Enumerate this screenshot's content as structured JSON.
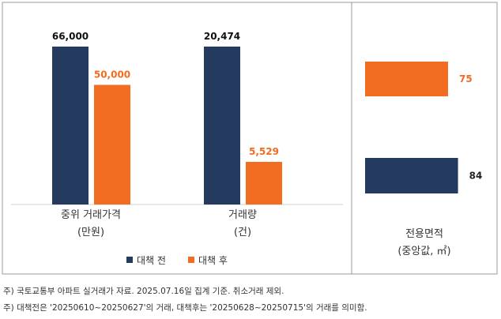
{
  "chart_data": [
    {
      "type": "bar",
      "orientation": "vertical",
      "categories": [
        "중위 거래가격\n(만원)",
        "거래량\n(건)"
      ],
      "category_lines": [
        [
          "중위 거래가격",
          "(만원)"
        ],
        [
          "거래량",
          "(건)"
        ]
      ],
      "series": [
        {
          "name": "대책 전",
          "values": [
            66000,
            20474
          ],
          "labels": [
            "66,000",
            "20,474"
          ]
        },
        {
          "name": "대책 후",
          "values": [
            50000,
            5529
          ],
          "labels": [
            "50,000",
            "5,529"
          ]
        }
      ],
      "normalize_per_category": true,
      "legend": "bottom-center"
    },
    {
      "type": "bar",
      "orientation": "horizontal",
      "title_lines": [
        "전용면적",
        "(중앙값, ㎡)"
      ],
      "series": [
        {
          "name": "대책 후",
          "value": 75,
          "label": "75"
        },
        {
          "name": "대책 전",
          "value": 84,
          "label": "84"
        }
      ],
      "xlim": [
        0,
        100
      ]
    }
  ],
  "colors": {
    "before": "#243a5e",
    "after": "#f26c21",
    "border": "#9a9a9a"
  },
  "notes": [
    "주) 국토교통부 아파트 실거래가 자료. 2025.07.16일 집계 기준. 취소거래 제외.",
    "주) 대책전은 '20250610~20250627'의 거래, 대책후는 '20250628~20250715'의 거래를 의미함."
  ]
}
